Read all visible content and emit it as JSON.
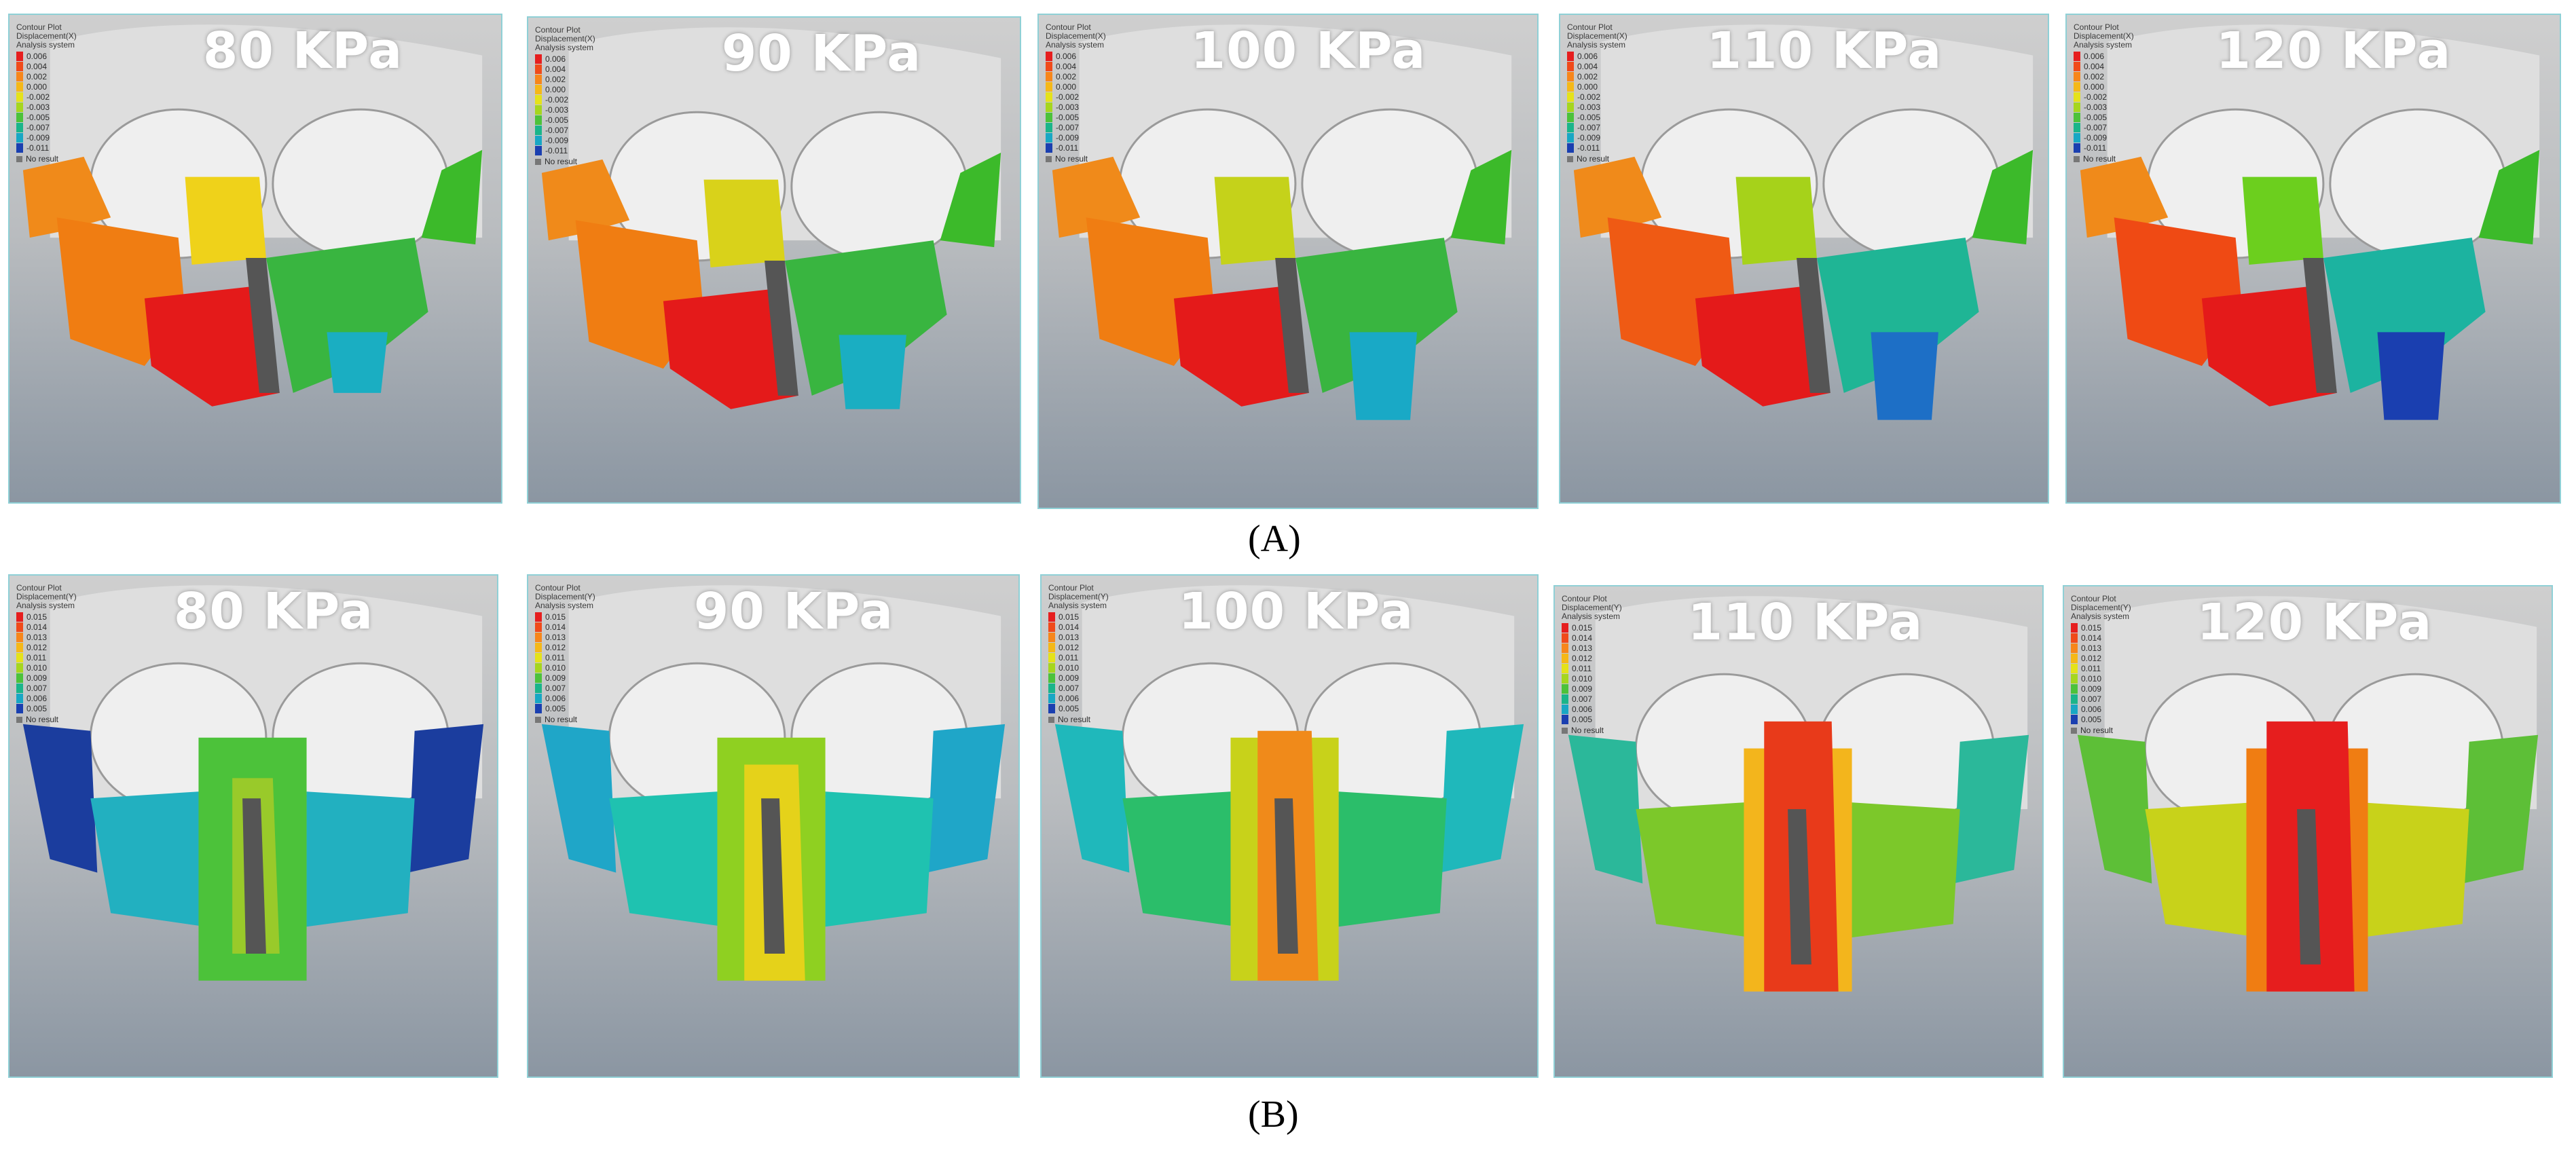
{
  "row_a": {
    "label": "(A)",
    "legend_header": [
      "Contour Plot",
      "Displacement(X)",
      "Analysis system"
    ],
    "legend_values": [
      "0.006",
      "0.004",
      "0.002",
      "0.000",
      "-0.002",
      "-0.003",
      "-0.005",
      "-0.007",
      "-0.009",
      "-0.011"
    ],
    "legend_no_result": "No result",
    "panels": [
      {
        "pressure": "80 KPa"
      },
      {
        "pressure": "90 KPa"
      },
      {
        "pressure": "100 KPa"
      },
      {
        "pressure": "110 KPa"
      },
      {
        "pressure": "120 KPa"
      }
    ]
  },
  "row_b": {
    "label": "(B)",
    "legend_header": [
      "Contour Plot",
      "Displacement(Y)",
      "Analysis system"
    ],
    "legend_values": [
      "0.015",
      "0.014",
      "0.013",
      "0.012",
      "0.011",
      "0.010",
      "0.009",
      "0.007",
      "0.006",
      "0.005"
    ],
    "legend_no_result": "No result",
    "panels": [
      {
        "pressure": "80 KPa"
      },
      {
        "pressure": "90 KPa"
      },
      {
        "pressure": "100 KPa"
      },
      {
        "pressure": "110 KPa"
      },
      {
        "pressure": "120 KPa"
      }
    ]
  },
  "legend_colors": [
    "#e61e1e",
    "#f04a1a",
    "#f7861b",
    "#f5b818",
    "#e5e21a",
    "#a6d61e",
    "#4cc23a",
    "#1ab58a",
    "#18a7c4",
    "#1a3fb0"
  ]
}
